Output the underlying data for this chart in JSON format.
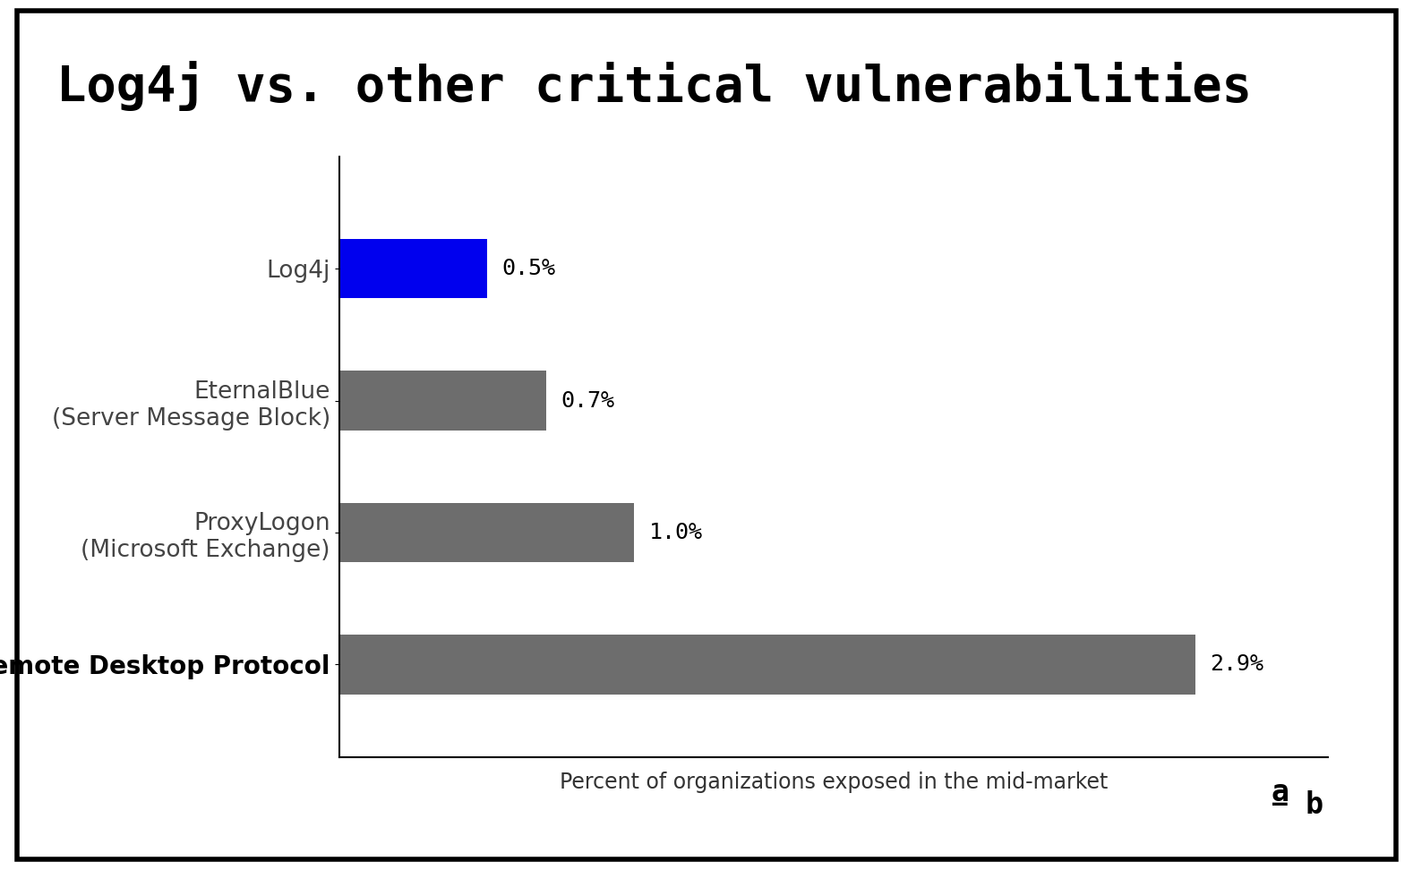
{
  "title": "Log4j vs. other critical vulnerabilities",
  "categories": [
    "Remote Desktop Protocol",
    "ProxyLogon\n(Microsoft Exchange)",
    "EternalBlue\n(Server Message Block)",
    "Log4j"
  ],
  "values": [
    2.9,
    1.0,
    0.7,
    0.5
  ],
  "bar_colors": [
    "#6d6d6d",
    "#6d6d6d",
    "#6d6d6d",
    "#0000ee"
  ],
  "value_labels": [
    "2.9%",
    "1.0%",
    "0.7%",
    "0.5%"
  ],
  "xlabel": "Percent of organizations exposed in the mid-market",
  "xlim": [
    0,
    3.35
  ],
  "background_color": "#ffffff",
  "title_fontsize": 40,
  "label_fontsize": 18,
  "tick_fontsize": 19,
  "xlabel_fontsize": 17,
  "watermark_a": "a",
  "watermark_b": "b",
  "bar_height": 0.45
}
